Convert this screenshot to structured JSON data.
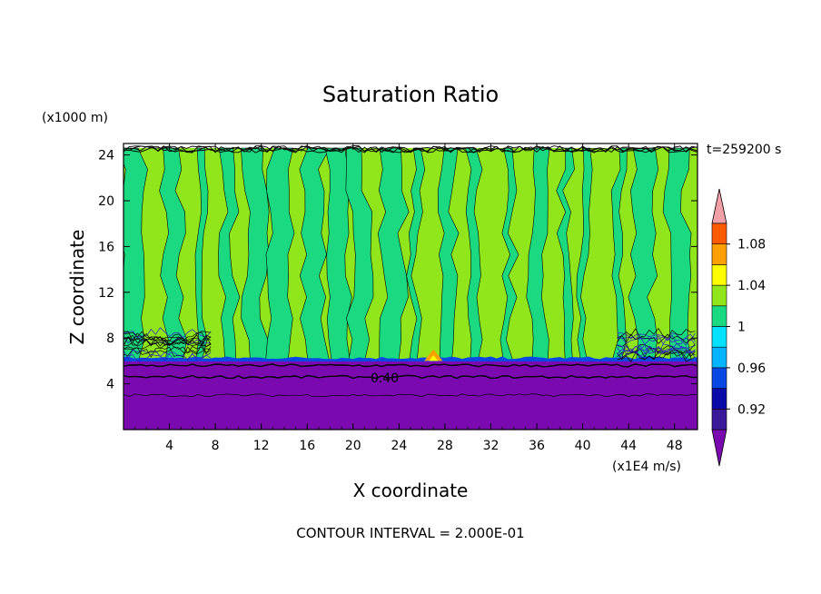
{
  "chart_data": {
    "type": "heatmap",
    "title": "Saturation Ratio",
    "xlabel": "X coordinate",
    "ylabel": "Z coordinate",
    "x_unit": "(x1E4 m/s)",
    "y_unit": "(x1000 m)",
    "time_label": "t=259200 s",
    "footer": "CONTOUR INTERVAL = 2.000E-01",
    "contour_label": "0.40",
    "xlim": [
      0,
      50
    ],
    "ylim": [
      0,
      25
    ],
    "xticks": [
      4,
      8,
      12,
      16,
      20,
      24,
      28,
      32,
      36,
      40,
      44,
      48
    ],
    "yticks": [
      4,
      8,
      12,
      16,
      20,
      24
    ],
    "colorbar": {
      "levels": [
        0.9,
        0.92,
        0.94,
        0.96,
        0.98,
        1.0,
        1.02,
        1.04,
        1.06,
        1.08,
        1.1
      ],
      "tick_labels": [
        "0.92",
        "0.96",
        "1",
        "1.04",
        "1.08"
      ],
      "tick_values": [
        0.92,
        0.96,
        1.0,
        1.04,
        1.08
      ],
      "colors": [
        "#3a1a9a",
        "#0a0aa8",
        "#0a48e6",
        "#00b4ff",
        "#00e0ff",
        "#1ad980",
        "#90e61a",
        "#ffff00",
        "#ffa000",
        "#ff5a00",
        "#f52020"
      ],
      "under_color": "#7a0ab0",
      "over_color": "#f4a0a8"
    },
    "regions": {
      "dry_layer_top_z": 6,
      "cloud_layer_bottom_z": 6,
      "cloud_layer_top_z": 24.6,
      "dominant_value_range": [
        1.0,
        1.02
      ],
      "alternating_value_range": [
        0.98,
        1.0
      ]
    }
  }
}
